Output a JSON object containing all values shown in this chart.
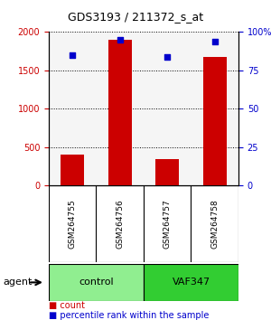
{
  "title": "GDS3193 / 211372_s_at",
  "samples": [
    "GSM264755",
    "GSM264756",
    "GSM264757",
    "GSM264758"
  ],
  "counts": [
    400,
    1900,
    350,
    1680
  ],
  "percentile_ranks": [
    85,
    95,
    84,
    94
  ],
  "groups": [
    "control",
    "control",
    "VAF347",
    "VAF347"
  ],
  "group_colors": {
    "control": "#90EE90",
    "VAF347": "#32CD32"
  },
  "bar_color": "#CC0000",
  "dot_color": "#0000CC",
  "ylim_left": [
    0,
    2000
  ],
  "ylim_right": [
    0,
    100
  ],
  "yticks_left": [
    0,
    500,
    1000,
    1500,
    2000
  ],
  "yticks_right": [
    0,
    25,
    50,
    75,
    100
  ],
  "ytick_labels_right": [
    "0",
    "25",
    "50",
    "75",
    "100%"
  ],
  "grid_color": "#000000",
  "background_color": "#ffffff",
  "left_tick_color": "#CC0000",
  "right_tick_color": "#0000CC"
}
